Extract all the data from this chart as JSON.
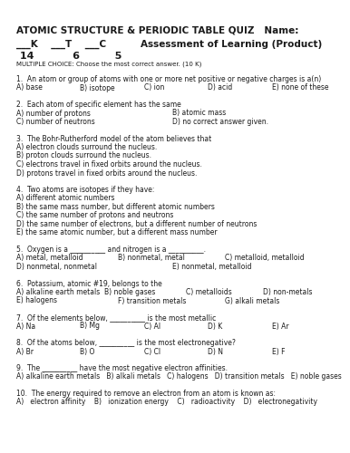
{
  "title": "ATOMIC STRUCTURE & PERIODIC TABLE QUIZ   Name:",
  "scores_line1_left": "___K    ___T    ___C",
  "scores_line1_right": "Assessment of Learning (Product)",
  "scores_line2": " 14           6          5",
  "mc_header": "MULTIPLE CHOICE: Choose the most correct answer. (10 K)",
  "questions": [
    {
      "q": "1.  An atom or group of atoms with one or more net positive or negative charges is a(n)",
      "ans": [
        {
          "cols": 5,
          "items": [
            "A) base",
            "B) isotope",
            "C) ion",
            "D) acid",
            "E) none of these"
          ]
        }
      ]
    },
    {
      "q": "2.  Each atom of specific element has the same",
      "ans": [
        {
          "cols": 2,
          "items": [
            "A) number of protons",
            "B) atomic mass"
          ]
        },
        {
          "cols": 2,
          "items": [
            "C) number of neutrons",
            "D) no correct answer given."
          ]
        }
      ]
    },
    {
      "q": "3.  The Bohr-Rutherford model of the atom believes that",
      "ans": [
        {
          "cols": 1,
          "items": [
            "A) electron clouds surround the nucleus."
          ]
        },
        {
          "cols": 1,
          "items": [
            "B) proton clouds surround the nucleus."
          ]
        },
        {
          "cols": 1,
          "items": [
            "C) electrons travel in fixed orbits around the nucleus."
          ]
        },
        {
          "cols": 1,
          "items": [
            "D) protons travel in fixed orbits around the nucleus."
          ]
        }
      ]
    },
    {
      "q": "4.  Two atoms are isotopes if they have:",
      "ans": [
        {
          "cols": 1,
          "items": [
            "A) different atomic numbers"
          ]
        },
        {
          "cols": 1,
          "items": [
            "B) the same mass number, but different atomic numbers"
          ]
        },
        {
          "cols": 1,
          "items": [
            "C) the same number of protons and neutrons"
          ]
        },
        {
          "cols": 1,
          "items": [
            "D) the same number of electrons, but a different number of neutrons"
          ]
        },
        {
          "cols": 1,
          "items": [
            "E) the same atomic number, but a different mass number"
          ]
        }
      ]
    },
    {
      "q": "5.  Oxygen is a __________ and nitrogen is a __________.",
      "ans": [
        {
          "cols": 3,
          "items": [
            "A) metal, metalloid",
            "B) nonmetal, metal",
            "C) metalloid, metalloid"
          ]
        },
        {
          "cols": 2,
          "items": [
            "D) nonmetal, nonmetal",
            "E) nonmetal, metalloid"
          ]
        }
      ]
    },
    {
      "q": "6.  Potassium, atomic #19, belongs to the",
      "ans": [
        {
          "cols": 4,
          "items": [
            "A) alkaline earth metals",
            "B) noble gases",
            "C) metalloids",
            "D) non-metals"
          ]
        },
        {
          "cols": 3,
          "items": [
            "E) halogens",
            "F) transition metals",
            "G) alkali metals"
          ]
        }
      ]
    },
    {
      "q": "7.  Of the elements below, __________ is the most metallic",
      "ans": [
        {
          "cols": 5,
          "items": [
            "A) Na",
            "B) Mg",
            "C) Al",
            "D) K",
            "E) Ar"
          ]
        }
      ]
    },
    {
      "q": "8.  Of the atoms below, __________ is the most electronegative?",
      "ans": [
        {
          "cols": 5,
          "items": [
            "A) Br",
            "B) O",
            "C) Cl",
            "D) N",
            "E) F"
          ]
        }
      ]
    },
    {
      "q": "9.  The __________ have the most negative electron affinities.",
      "ans": [
        {
          "cols": 1,
          "items": [
            "A) alkaline earth metals   B) alkali metals   C) halogens   D) transition metals   E) noble gases"
          ]
        }
      ]
    },
    {
      "q": "10.  The energy required to remove an electron from an atom is known as:",
      "ans": [
        {
          "cols": 1,
          "items": [
            "A)   electron affinity    B)   ionization energy    C)   radioactivity    D)   electronegativity"
          ]
        }
      ]
    }
  ],
  "bg_color": "#ffffff",
  "text_color": "#1a1a1a",
  "title_fontsize": 7.5,
  "subtitle_fontsize": 7.5,
  "scores_fontsize": 8.0,
  "mc_fontsize": 5.0,
  "q_fontsize": 5.5,
  "ans_fontsize": 5.5
}
